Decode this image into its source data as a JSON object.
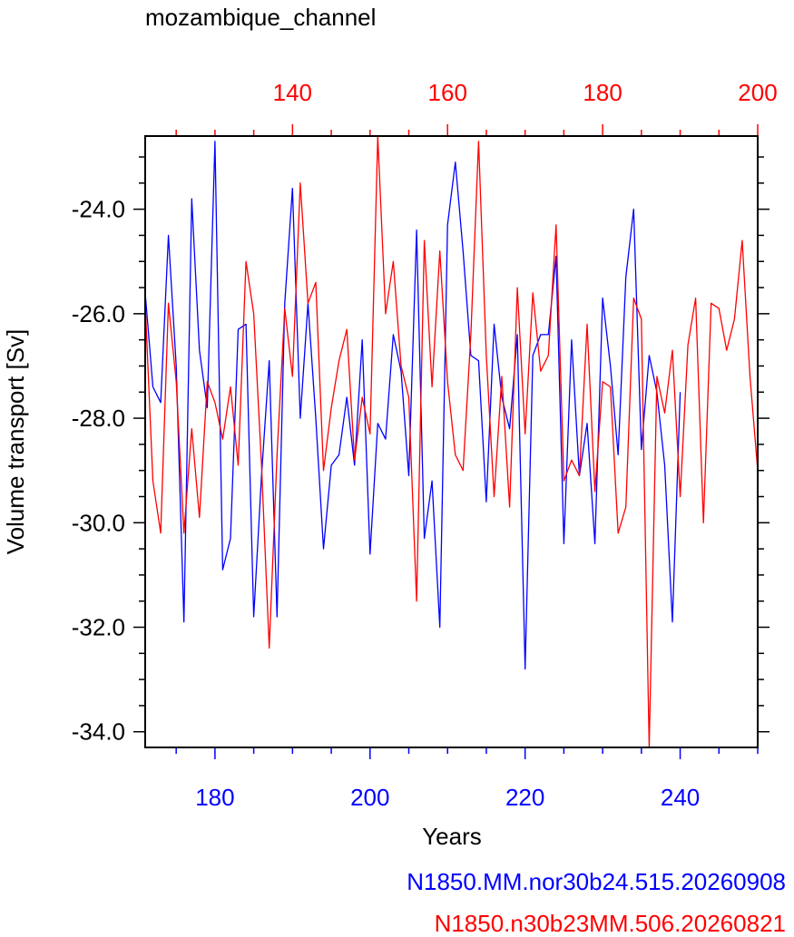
{
  "chart_data": {
    "type": "line",
    "title": "mozambique_channel",
    "xlabel": "Years",
    "ylabel": "Volume transport [Sv]",
    "ylim": [
      -34.3,
      -22.6
    ],
    "yticks": [
      -24.0,
      -26.0,
      -28.0,
      -30.0,
      -32.0,
      -34.0
    ],
    "grid": false,
    "axes": {
      "bottom": {
        "xlim": [
          171,
          250
        ],
        "ticks": [
          180,
          200,
          220,
          240
        ],
        "color": "#0000ff"
      },
      "top": {
        "xlim": [
          121,
          200
        ],
        "ticks": [
          140,
          160,
          180,
          200
        ],
        "color": "#ff0000"
      }
    },
    "series": [
      {
        "name": "N1850.MM.nor30b24.515.20260908",
        "axis": "bottom",
        "color": "#0000ff",
        "x": [
          171,
          172,
          173,
          174,
          175,
          176,
          177,
          178,
          179,
          180,
          181,
          182,
          183,
          184,
          185,
          186,
          187,
          188,
          189,
          190,
          191,
          192,
          193,
          194,
          195,
          196,
          197,
          198,
          199,
          200,
          201,
          202,
          203,
          204,
          205,
          206,
          207,
          208,
          209,
          210,
          211,
          212,
          213,
          214,
          215,
          216,
          217,
          218,
          219,
          220,
          221,
          222,
          223,
          224,
          225,
          226,
          227,
          228,
          229,
          230,
          231,
          232,
          233,
          234,
          235,
          236,
          237,
          238,
          239,
          240
        ],
        "values": [
          -25.6,
          -27.4,
          -27.7,
          -24.5,
          -27.0,
          -31.9,
          -23.8,
          -26.7,
          -27.8,
          -22.7,
          -30.9,
          -30.3,
          -26.3,
          -26.2,
          -31.8,
          -29.1,
          -26.9,
          -31.8,
          -25.8,
          -23.6,
          -28.0,
          -25.8,
          -28.0,
          -30.5,
          -28.9,
          -28.7,
          -27.6,
          -28.9,
          -26.5,
          -30.6,
          -28.1,
          -28.4,
          -26.4,
          -27.1,
          -29.1,
          -24.4,
          -30.3,
          -29.2,
          -32.0,
          -24.3,
          -23.1,
          -24.8,
          -26.8,
          -26.9,
          -29.6,
          -26.2,
          -27.6,
          -28.2,
          -26.4,
          -32.8,
          -26.8,
          -26.4,
          -26.4,
          -24.9,
          -30.4,
          -26.5,
          -29.1,
          -28.1,
          -30.4,
          -25.7,
          -27.0,
          -28.7,
          -25.3,
          -24.0,
          -28.6,
          -26.8,
          -27.5,
          -28.9,
          -31.9,
          -27.5
        ]
      },
      {
        "name": "N1850.n30b23MM.506.20260821",
        "axis": "top",
        "color": "#ff0000",
        "x": [
          121,
          122,
          123,
          124,
          125,
          126,
          127,
          128,
          129,
          130,
          131,
          132,
          133,
          134,
          135,
          136,
          137,
          138,
          139,
          140,
          141,
          142,
          143,
          144,
          145,
          146,
          147,
          148,
          149,
          150,
          151,
          152,
          153,
          154,
          155,
          156,
          157,
          158,
          159,
          160,
          161,
          162,
          163,
          164,
          165,
          166,
          167,
          168,
          169,
          170,
          171,
          172,
          173,
          174,
          175,
          176,
          177,
          178,
          179,
          180,
          181,
          182,
          183,
          184,
          185,
          186,
          187,
          188,
          189,
          190,
          191,
          192,
          193,
          194,
          195,
          196,
          197,
          198,
          199,
          200
        ],
        "values": [
          -25.8,
          -29.2,
          -30.2,
          -25.8,
          -27.3,
          -30.2,
          -28.2,
          -29.9,
          -27.3,
          -27.7,
          -28.4,
          -27.4,
          -28.9,
          -25.0,
          -26.0,
          -28.9,
          -32.4,
          -28.7,
          -25.9,
          -27.2,
          -23.5,
          -25.8,
          -25.4,
          -29.0,
          -27.8,
          -26.9,
          -26.3,
          -28.8,
          -27.6,
          -28.3,
          -22.6,
          -26.0,
          -25.0,
          -27.0,
          -27.6,
          -31.5,
          -24.6,
          -27.4,
          -24.8,
          -27.3,
          -28.7,
          -29.0,
          -26.4,
          -22.7,
          -26.8,
          -29.5,
          -27.2,
          -29.7,
          -25.5,
          -28.3,
          -25.6,
          -27.1,
          -26.8,
          -24.3,
          -29.2,
          -28.8,
          -29.1,
          -26.2,
          -29.4,
          -27.3,
          -27.4,
          -30.2,
          -29.7,
          -25.7,
          -26.1,
          -34.3,
          -27.2,
          -27.9,
          -26.7,
          -29.5,
          -26.6,
          -25.7,
          -30.0,
          -25.8,
          -25.9,
          -26.7,
          -26.1,
          -24.6,
          -27.2,
          -29.0
        ]
      }
    ]
  }
}
